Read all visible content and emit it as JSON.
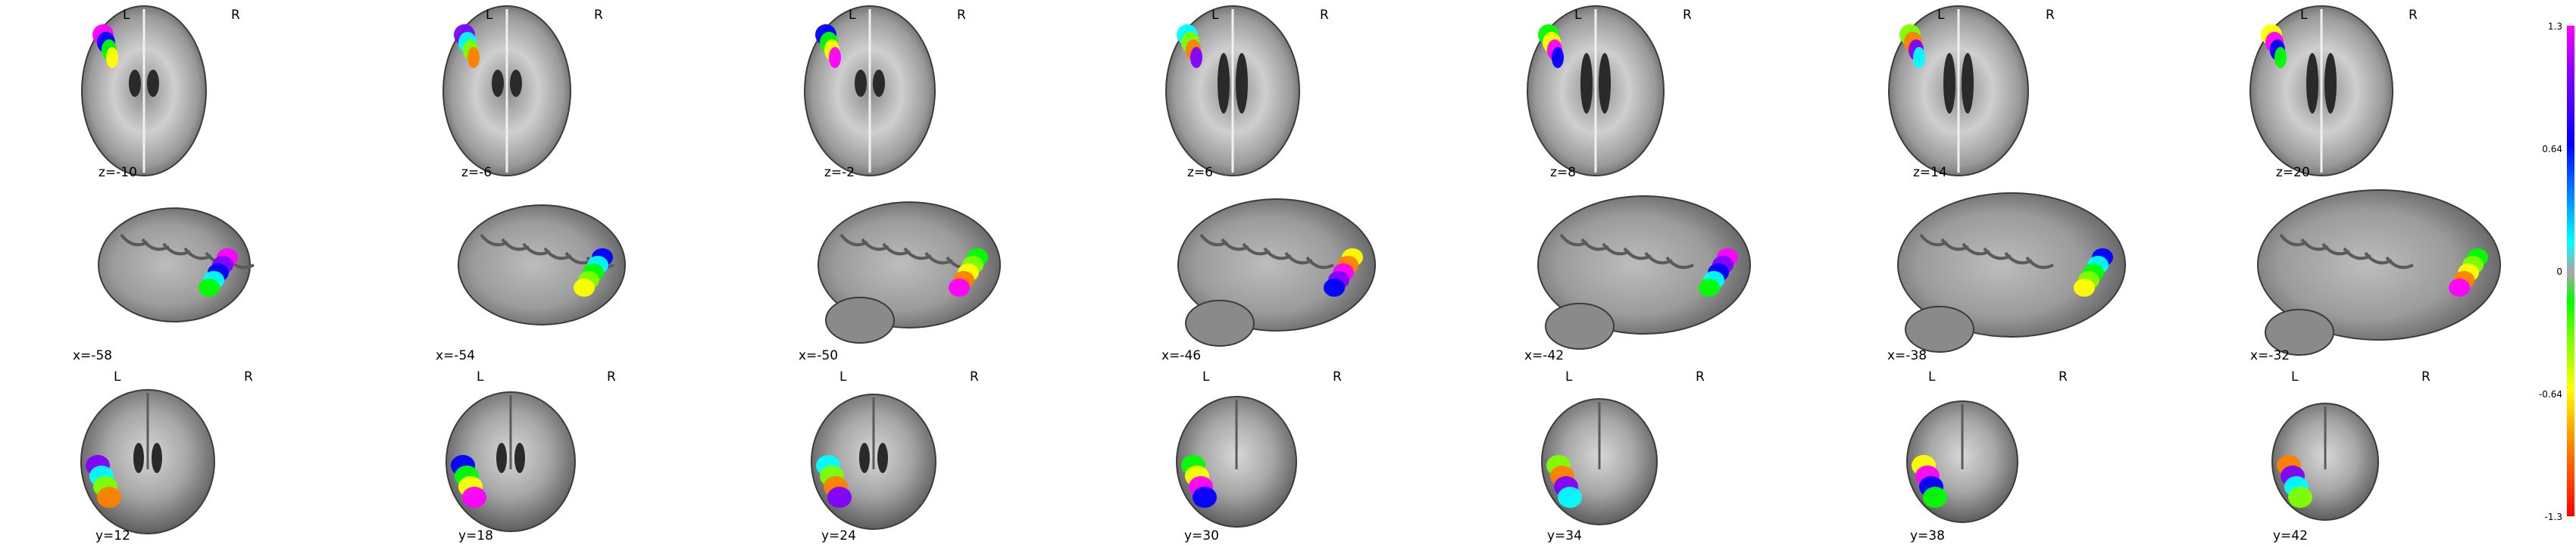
{
  "views": [
    {
      "kind": "axial",
      "orient_left": "L",
      "orient_right": "R",
      "cut_labels": [
        "z=-10",
        "z=-6",
        "z=-2",
        "z=6",
        "z=8",
        "z=14",
        "z=20"
      ]
    },
    {
      "kind": "sagittal",
      "orient_left": "",
      "orient_right": "",
      "cut_labels": [
        "x=-58",
        "x=-54",
        "x=-50",
        "x=-46",
        "x=-42",
        "x=-38",
        "x=-32"
      ]
    },
    {
      "kind": "coronal",
      "orient_left": "L",
      "orient_right": "R",
      "cut_labels": [
        "y=12",
        "y=18",
        "y=24",
        "y=30",
        "y=34",
        "y=38",
        "y=42"
      ]
    }
  ],
  "colorbar": {
    "ticks": [
      "1.3",
      "0.64",
      "0",
      "-0.64",
      "-1.3"
    ],
    "colors": {
      "max": "#ff00ff",
      "high": "#0000ff",
      "mid_high": "#00ffff",
      "center": "#a8a8a8",
      "mid_low": "#00ff00",
      "low": "#ffff00",
      "min": "#ff0000"
    }
  }
}
